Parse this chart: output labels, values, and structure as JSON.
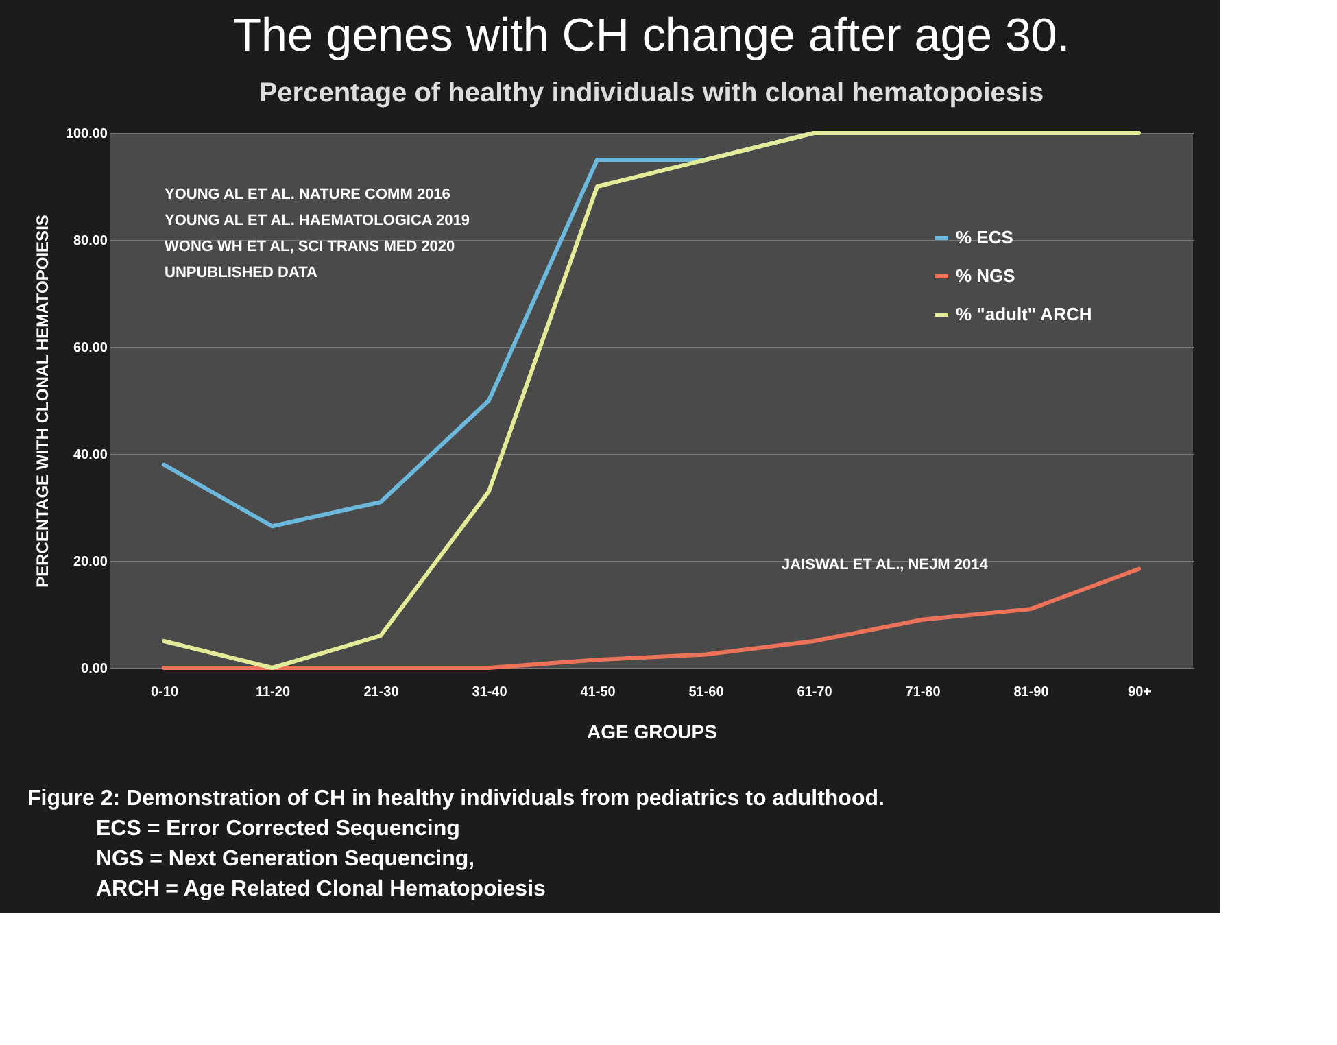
{
  "chart_data": {
    "type": "line",
    "title": "The genes with CH change after age 30.",
    "subtitle": "Percentage of healthy individuals with clonal hematopoiesis",
    "xlabel": "AGE GROUPS",
    "ylabel": "PERCENTAGE WITH CLONAL HEMATOPOIESIS",
    "categories": [
      "0-10",
      "11-20",
      "21-30",
      "31-40",
      "41-50",
      "51-60",
      "61-70",
      "71-80",
      "81-90",
      "90+"
    ],
    "series": [
      {
        "name": "% ECS",
        "color": "#6cb8dc",
        "values": [
          38,
          26.5,
          31,
          50,
          95,
          95,
          100,
          null,
          null,
          null
        ]
      },
      {
        "name": "% NGS",
        "color": "#ec735a",
        "values": [
          0,
          0,
          0,
          0,
          1.5,
          2.5,
          5,
          9,
          11,
          18.5
        ]
      },
      {
        "name": "% \"adult\" ARCH",
        "color": "#e4eb98",
        "values": [
          5,
          0,
          6,
          33,
          90,
          95,
          100,
          100,
          100,
          100
        ]
      }
    ],
    "ylim": [
      0,
      100
    ],
    "yticks": [
      {
        "value": 0,
        "label": "0.00"
      },
      {
        "value": 20,
        "label": "20.00"
      },
      {
        "value": 40,
        "label": "40.00"
      },
      {
        "value": 60,
        "label": "60.00"
      },
      {
        "value": 80,
        "label": "80.00"
      },
      {
        "value": 100,
        "label": "100.00"
      }
    ],
    "grid": "y",
    "legend": "right",
    "marker": "none",
    "line_style": "solid",
    "annotations": [
      "YOUNG AL ET AL. NATURE COMM 2016",
      "YOUNG AL ET AL. HAEMATOLOGICA 2019",
      "WONG WH ET AL, SCI TRANS MED 2020",
      "UNPUBLISHED DATA",
      "JAISWAL ET AL., NEJM 2014",
      "Figure 2: Demonstration of CH in healthy individuals from pediatrics to adulthood.",
      "ECS = Error Corrected Sequencing",
      "NGS = Next Generation Sequencing,",
      "ARCH = Age Related Clonal Hematopoiesis"
    ]
  }
}
